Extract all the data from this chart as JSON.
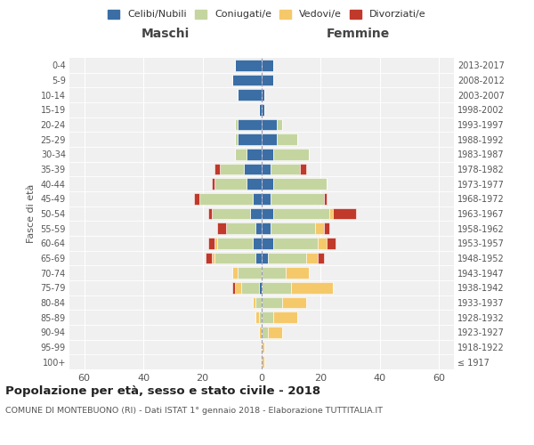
{
  "age_groups": [
    "100+",
    "95-99",
    "90-94",
    "85-89",
    "80-84",
    "75-79",
    "70-74",
    "65-69",
    "60-64",
    "55-59",
    "50-54",
    "45-49",
    "40-44",
    "35-39",
    "30-34",
    "25-29",
    "20-24",
    "15-19",
    "10-14",
    "5-9",
    "0-4"
  ],
  "birth_years": [
    "≤ 1917",
    "1918-1922",
    "1923-1927",
    "1928-1932",
    "1933-1937",
    "1938-1942",
    "1943-1947",
    "1948-1952",
    "1953-1957",
    "1958-1962",
    "1963-1967",
    "1968-1972",
    "1973-1977",
    "1978-1982",
    "1983-1987",
    "1988-1992",
    "1993-1997",
    "1998-2002",
    "2003-2007",
    "2008-2012",
    "2013-2017"
  ],
  "colors": {
    "celibi": "#3a6ea5",
    "coniugati": "#c5d5a0",
    "vedovi": "#f5c96a",
    "divorziati": "#c0392b"
  },
  "maschi": {
    "celibi": [
      0,
      0,
      0,
      0,
      0,
      1,
      0,
      2,
      3,
      2,
      4,
      3,
      5,
      6,
      5,
      8,
      8,
      1,
      8,
      10,
      9
    ],
    "coniugati": [
      0,
      0,
      0,
      1,
      2,
      6,
      8,
      14,
      12,
      10,
      13,
      18,
      11,
      8,
      4,
      1,
      1,
      0,
      0,
      0,
      0
    ],
    "vedovi": [
      0,
      0,
      1,
      1,
      1,
      2,
      2,
      1,
      1,
      0,
      0,
      0,
      0,
      0,
      0,
      0,
      0,
      0,
      0,
      0,
      0
    ],
    "divorziati": [
      0,
      0,
      0,
      0,
      0,
      1,
      0,
      2,
      2,
      3,
      1,
      2,
      1,
      2,
      0,
      0,
      0,
      0,
      0,
      0,
      0
    ]
  },
  "femmine": {
    "celibi": [
      0,
      0,
      0,
      0,
      0,
      0,
      0,
      2,
      4,
      3,
      4,
      3,
      4,
      3,
      4,
      5,
      5,
      1,
      1,
      4,
      4
    ],
    "coniugati": [
      0,
      0,
      2,
      4,
      7,
      10,
      8,
      13,
      15,
      15,
      19,
      18,
      18,
      10,
      12,
      7,
      2,
      0,
      0,
      0,
      0
    ],
    "vedovi": [
      1,
      1,
      5,
      8,
      8,
      14,
      8,
      4,
      3,
      3,
      1,
      0,
      0,
      0,
      0,
      0,
      0,
      0,
      0,
      0,
      0
    ],
    "divorziati": [
      0,
      0,
      0,
      0,
      0,
      0,
      0,
      2,
      3,
      2,
      8,
      1,
      0,
      2,
      0,
      0,
      0,
      0,
      0,
      0,
      0
    ]
  },
  "xlim": 65,
  "title": "Popolazione per età, sesso e stato civile - 2018",
  "subtitle": "COMUNE DI MONTEBUONO (RI) - Dati ISTAT 1° gennaio 2018 - Elaborazione TUTTITALIA.IT",
  "ylabel_left": "Fasce di età",
  "header_maschi": "Maschi",
  "header_femmine": "Femmine",
  "legend_labels": [
    "Celibi/Nubili",
    "Coniugati/e",
    "Vedovi/e",
    "Divorziati/e"
  ],
  "background_color": "#f0f0f0"
}
